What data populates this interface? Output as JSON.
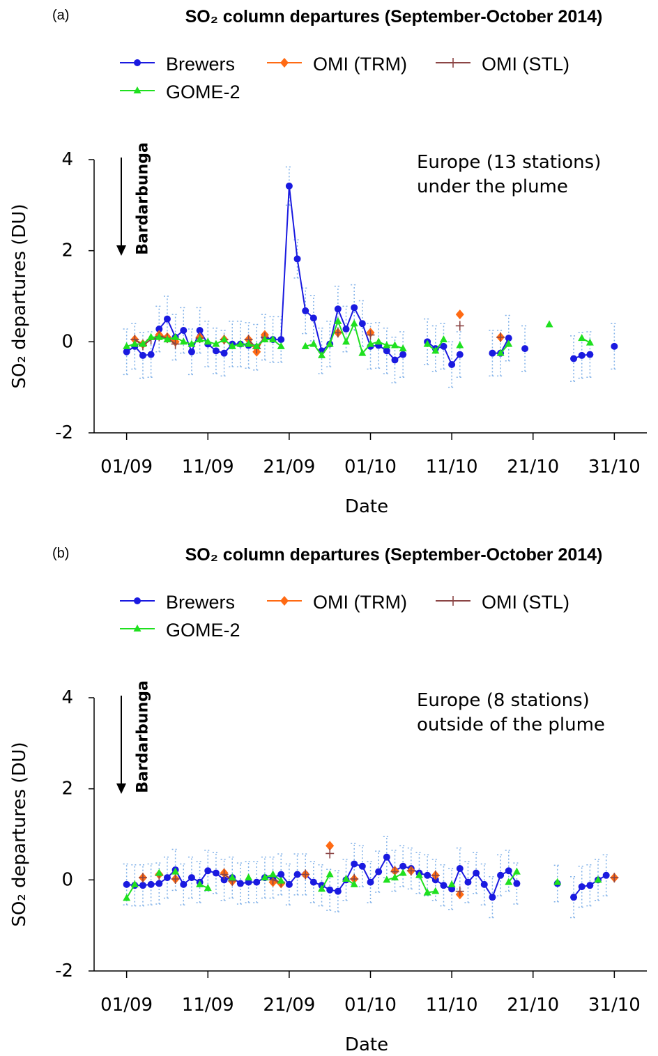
{
  "chart_data": [
    {
      "type": "line",
      "panel": "(a)",
      "title": "SO₂ column departures (September-October 2014)",
      "x_label": "Date",
      "y_label": "SO₂ departures (DU)",
      "annotations": {
        "region": [
          "Europe (13 stations)",
          "under the plume"
        ],
        "event": "Bardarbunga"
      },
      "legend": "top",
      "x": [
        "01/09",
        "02/09",
        "03/09",
        "04/09",
        "05/09",
        "06/09",
        "07/09",
        "08/09",
        "09/09",
        "10/09",
        "11/09",
        "12/09",
        "13/09",
        "14/09",
        "15/09",
        "16/09",
        "17/09",
        "18/09",
        "19/09",
        "20/09",
        "21/09",
        "22/09",
        "23/09",
        "24/09",
        "25/09",
        "26/09",
        "27/09",
        "28/09",
        "29/09",
        "30/09",
        "01/10",
        "02/10",
        "03/10",
        "04/10",
        "05/10",
        "06/10",
        "07/10",
        "08/10",
        "09/10",
        "10/10",
        "11/10",
        "12/10",
        "13/10",
        "14/10",
        "15/10",
        "16/10",
        "17/10",
        "18/10",
        "19/10",
        "20/10",
        "21/10",
        "22/10",
        "23/10",
        "24/10",
        "25/10",
        "26/10",
        "27/10",
        "28/10",
        "29/10",
        "30/10",
        "31/10"
      ],
      "xlim": [
        "28/08",
        "04/11"
      ],
      "xticks": [
        "01/09",
        "11/09",
        "21/09",
        "01/10",
        "11/10",
        "21/10",
        "31/10"
      ],
      "ylim": [
        -2,
        4
      ],
      "yticks": [
        -2,
        0,
        2,
        4
      ],
      "series": [
        {
          "name": "Brewers",
          "color": "#1a1ae0",
          "marker": "circle",
          "values": [
            -0.22,
            -0.1,
            -0.3,
            -0.28,
            0.28,
            0.5,
            0.1,
            0.25,
            -0.22,
            0.25,
            -0.05,
            -0.2,
            -0.25,
            -0.05,
            -0.05,
            -0.08,
            -0.12,
            0.1,
            0.05,
            0.05,
            3.42,
            1.82,
            0.68,
            0.52,
            -0.2,
            -0.05,
            0.72,
            0.28,
            0.75,
            0.4,
            -0.1,
            -0.08,
            -0.2,
            -0.4,
            -0.28,
            null,
            null,
            0.0,
            -0.15,
            -0.1,
            -0.5,
            -0.28,
            null,
            null,
            null,
            -0.25,
            -0.25,
            0.08,
            null,
            -0.15,
            null,
            null,
            null,
            null,
            null,
            -0.37,
            -0.3,
            -0.28,
            null,
            null,
            -0.1
          ],
          "errors": [
            0.5,
            0.5,
            0.5,
            0.5,
            0.5,
            0.5,
            0.5,
            0.5,
            0.5,
            0.5,
            0.5,
            0.5,
            0.5,
            0.5,
            0.5,
            0.5,
            0.5,
            0.5,
            0.5,
            0.5,
            0.42,
            0.42,
            0.5,
            0.5,
            0.5,
            0.5,
            0.5,
            0.5,
            0.5,
            0.5,
            0.5,
            0.5,
            0.5,
            0.5,
            0.5,
            null,
            null,
            0.5,
            0.5,
            0.5,
            0.5,
            0.5,
            null,
            null,
            null,
            0.5,
            0.5,
            0.5,
            null,
            0.5,
            null,
            null,
            null,
            null,
            null,
            0.5,
            0.5,
            0.5,
            null,
            null,
            0.5
          ]
        },
        {
          "name": "OMI (TRM)",
          "color": "#ff6a13",
          "marker": "diamond",
          "values": [
            null,
            0.05,
            -0.05,
            null,
            0.15,
            0.1,
            0.0,
            null,
            null,
            0.1,
            null,
            null,
            0.05,
            null,
            null,
            0.05,
            -0.22,
            0.15,
            null,
            null,
            null,
            null,
            null,
            null,
            null,
            null,
            0.2,
            null,
            null,
            null,
            0.2,
            null,
            null,
            null,
            null,
            null,
            null,
            null,
            null,
            null,
            null,
            0.6,
            null,
            null,
            null,
            null,
            0.1,
            null,
            null,
            null,
            null,
            null,
            null,
            null,
            null,
            null,
            null,
            null,
            null,
            null,
            null
          ]
        },
        {
          "name": "OMI (STL)",
          "color": "#8b4545",
          "marker": "plus",
          "values": [
            null,
            0.05,
            -0.08,
            0.05,
            0.12,
            0.08,
            -0.05,
            null,
            null,
            0.08,
            null,
            null,
            0.05,
            null,
            null,
            0.05,
            -0.15,
            0.1,
            null,
            null,
            null,
            null,
            null,
            null,
            null,
            null,
            0.2,
            null,
            null,
            null,
            0.15,
            null,
            null,
            null,
            null,
            null,
            null,
            null,
            null,
            null,
            null,
            0.35,
            null,
            null,
            null,
            null,
            0.1,
            null,
            null,
            null,
            null,
            null,
            null,
            null,
            null,
            null,
            null,
            null,
            null,
            null,
            null
          ]
        },
        {
          "name": "GOME-2",
          "color": "#1fe01f",
          "marker": "triangle",
          "values": [
            -0.1,
            -0.05,
            -0.05,
            0.1,
            0.1,
            0.05,
            0.1,
            0.0,
            -0.05,
            0.05,
            0.0,
            -0.05,
            0.05,
            -0.1,
            -0.05,
            -0.05,
            -0.1,
            0.05,
            0.05,
            -0.1,
            null,
            null,
            -0.1,
            -0.05,
            -0.3,
            -0.05,
            0.45,
            0.0,
            0.4,
            -0.25,
            -0.05,
            0.0,
            -0.08,
            -0.08,
            -0.15,
            null,
            null,
            -0.05,
            -0.2,
            0.05,
            null,
            -0.08,
            null,
            null,
            null,
            null,
            -0.25,
            -0.05,
            null,
            null,
            null,
            null,
            0.38,
            null,
            null,
            null,
            0.08,
            -0.02,
            null,
            null,
            null
          ]
        }
      ]
    },
    {
      "type": "line",
      "panel": "(b)",
      "title": "SO₂ column departures (September-October 2014)",
      "x_label": "Date",
      "y_label": "SO₂ departures (DU)",
      "annotations": {
        "region": [
          "Europe (8 stations)",
          "outside of the plume"
        ],
        "event": "Bardarbunga"
      },
      "legend": "top",
      "x": [
        "01/09",
        "02/09",
        "03/09",
        "04/09",
        "05/09",
        "06/09",
        "07/09",
        "08/09",
        "09/09",
        "10/09",
        "11/09",
        "12/09",
        "13/09",
        "14/09",
        "15/09",
        "16/09",
        "17/09",
        "18/09",
        "19/09",
        "20/09",
        "21/09",
        "22/09",
        "23/09",
        "24/09",
        "25/09",
        "26/09",
        "27/09",
        "28/09",
        "29/09",
        "30/09",
        "01/10",
        "02/10",
        "03/10",
        "04/10",
        "05/10",
        "06/10",
        "07/10",
        "08/10",
        "09/10",
        "10/10",
        "11/10",
        "12/10",
        "13/10",
        "14/10",
        "15/10",
        "16/10",
        "17/10",
        "18/10",
        "19/10",
        "20/10",
        "21/10",
        "22/10",
        "23/10",
        "24/10",
        "25/10",
        "26/10",
        "27/10",
        "28/10",
        "29/10",
        "30/10",
        "31/10"
      ],
      "xlim": [
        "28/08",
        "04/11"
      ],
      "xticks": [
        "01/09",
        "11/09",
        "21/09",
        "01/10",
        "11/10",
        "21/10",
        "31/10"
      ],
      "ylim": [
        -2,
        4
      ],
      "yticks": [
        -2,
        0,
        2,
        4
      ],
      "series": [
        {
          "name": "Brewers",
          "color": "#1a1ae0",
          "marker": "circle",
          "values": [
            -0.1,
            -0.12,
            -0.12,
            -0.1,
            -0.08,
            0.05,
            0.22,
            -0.1,
            0.05,
            -0.05,
            0.2,
            0.15,
            0.0,
            0.05,
            -0.08,
            -0.05,
            -0.05,
            0.05,
            0.05,
            0.12,
            -0.1,
            0.12,
            0.12,
            -0.05,
            -0.12,
            -0.22,
            -0.25,
            0.0,
            0.35,
            0.3,
            -0.05,
            0.18,
            0.5,
            0.2,
            0.3,
            0.25,
            0.15,
            0.1,
            0.0,
            -0.12,
            -0.2,
            0.25,
            -0.05,
            0.15,
            -0.1,
            -0.38,
            0.1,
            0.2,
            -0.08,
            null,
            null,
            null,
            null,
            -0.08,
            null,
            -0.38,
            -0.15,
            -0.12,
            0.0,
            0.1,
            null
          ],
          "errors": [
            0.45,
            0.45,
            0.45,
            0.45,
            0.45,
            0.45,
            0.45,
            0.45,
            0.45,
            0.45,
            0.45,
            0.45,
            0.45,
            0.45,
            0.45,
            0.45,
            0.45,
            0.45,
            0.45,
            0.45,
            0.45,
            0.45,
            0.45,
            0.45,
            0.45,
            0.45,
            0.45,
            0.45,
            0.45,
            0.45,
            0.45,
            0.45,
            0.45,
            0.45,
            0.45,
            0.45,
            0.45,
            0.45,
            0.45,
            0.45,
            0.45,
            0.45,
            0.45,
            0.45,
            0.45,
            0.45,
            0.45,
            0.45,
            0.45,
            null,
            null,
            null,
            null,
            0.4,
            null,
            0.45,
            0.45,
            0.45,
            0.45,
            0.45,
            null
          ]
        },
        {
          "name": "OMI (TRM)",
          "color": "#ff6a13",
          "marker": "diamond",
          "values": [
            null,
            null,
            0.05,
            null,
            0.12,
            null,
            0.02,
            null,
            null,
            null,
            null,
            null,
            0.15,
            -0.03,
            null,
            null,
            null,
            null,
            -0.05,
            -0.08,
            null,
            null,
            0.12,
            null,
            null,
            0.75,
            null,
            null,
            0.02,
            null,
            null,
            null,
            null,
            0.2,
            null,
            0.2,
            null,
            null,
            0.1,
            null,
            null,
            -0.32,
            null,
            null,
            null,
            null,
            null,
            null,
            null,
            null,
            null,
            null,
            null,
            null,
            null,
            null,
            null,
            null,
            null,
            null,
            0.05
          ]
        },
        {
          "name": "OMI (STL)",
          "color": "#8b4545",
          "marker": "plus",
          "values": [
            null,
            null,
            0.05,
            null,
            0.1,
            null,
            0.02,
            null,
            null,
            null,
            null,
            null,
            0.12,
            -0.02,
            null,
            null,
            null,
            null,
            0.0,
            -0.05,
            null,
            null,
            0.12,
            null,
            null,
            0.58,
            null,
            null,
            0.02,
            null,
            null,
            null,
            null,
            0.18,
            null,
            0.2,
            null,
            null,
            0.1,
            null,
            null,
            -0.25,
            null,
            null,
            null,
            null,
            null,
            null,
            null,
            null,
            null,
            null,
            null,
            null,
            null,
            null,
            null,
            null,
            null,
            null,
            0.05
          ]
        },
        {
          "name": "GOME-2",
          "color": "#1fe01f",
          "marker": "triangle",
          "values": [
            -0.4,
            -0.1,
            null,
            null,
            0.15,
            null,
            0.18,
            null,
            null,
            -0.1,
            -0.18,
            null,
            null,
            0.05,
            null,
            0.05,
            null,
            0.05,
            0.12,
            -0.02,
            null,
            null,
            null,
            null,
            -0.2,
            0.12,
            null,
            0.02,
            -0.1,
            null,
            null,
            null,
            0.0,
            0.05,
            0.15,
            null,
            0.1,
            -0.28,
            -0.25,
            null,
            -0.1,
            null,
            null,
            null,
            null,
            null,
            null,
            -0.05,
            0.18,
            null,
            null,
            null,
            null,
            -0.05,
            null,
            null,
            null,
            null,
            0.0,
            null,
            null
          ]
        }
      ]
    }
  ]
}
